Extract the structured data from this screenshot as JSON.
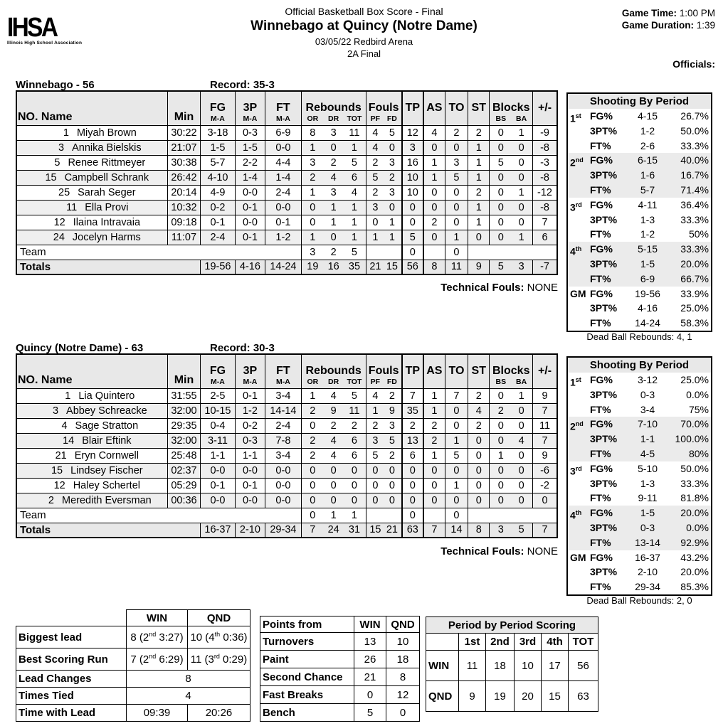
{
  "page": {
    "logo_text": "IHSA",
    "logo_sub": "Illinois High School Association",
    "title1": "Official Basketball Box Score - Final",
    "title2": "Winnebago at Quincy (Notre Dame)",
    "title3": "03/05/22 Redbird Arena",
    "title4": "2A Final",
    "game_time_label": "Game Time:",
    "game_time": "1:00 PM",
    "game_duration_label": "Game Duration:",
    "game_duration": "1:39",
    "officials_label": "Officials:"
  },
  "box_header": {
    "no_name": "NO. Name",
    "min": "Min",
    "fg": "FG",
    "p3": "3P",
    "ft": "FT",
    "ma": "M-A",
    "rebounds": "Rebounds",
    "or": "OR",
    "dr": "DR",
    "tot": "TOT",
    "fouls": "Fouls",
    "pf": "PF",
    "fd": "FD",
    "tp": "TP",
    "as": "AS",
    "to": "TO",
    "st": "ST",
    "blocks": "Blocks",
    "bs": "BS",
    "ba": "BA",
    "pm": "+/-"
  },
  "teams": [
    {
      "name": "Winnebago - 56",
      "record": "Record: 35-3",
      "players": [
        [
          "1",
          "Miyah Brown",
          "30:22",
          "3-18",
          "0-3",
          "6-9",
          "8",
          "3",
          "11",
          "4",
          "5",
          "12",
          "4",
          "2",
          "2",
          "0",
          "1",
          "-9"
        ],
        [
          "3",
          "Annika Bielskis",
          "21:07",
          "1-5",
          "1-5",
          "0-0",
          "1",
          "0",
          "1",
          "4",
          "0",
          "3",
          "0",
          "0",
          "1",
          "0",
          "0",
          "-8"
        ],
        [
          "5",
          "Renee Rittmeyer",
          "30:38",
          "5-7",
          "2-2",
          "4-4",
          "3",
          "2",
          "5",
          "2",
          "3",
          "16",
          "1",
          "3",
          "1",
          "5",
          "0",
          "-3"
        ],
        [
          "15",
          "Campbell Schrank",
          "26:42",
          "4-10",
          "1-4",
          "1-4",
          "2",
          "4",
          "6",
          "5",
          "2",
          "10",
          "1",
          "5",
          "1",
          "0",
          "0",
          "-8"
        ],
        [
          "25",
          "Sarah Seger",
          "20:14",
          "4-9",
          "0-0",
          "2-4",
          "1",
          "3",
          "4",
          "2",
          "3",
          "10",
          "0",
          "0",
          "2",
          "0",
          "1",
          "-12"
        ],
        [
          "11",
          "Ella Provi",
          "10:32",
          "0-2",
          "0-1",
          "0-0",
          "0",
          "1",
          "1",
          "3",
          "0",
          "0",
          "0",
          "0",
          "1",
          "0",
          "0",
          "-8"
        ],
        [
          "12",
          "Ilaina Intravaia",
          "09:18",
          "0-1",
          "0-0",
          "0-1",
          "0",
          "1",
          "1",
          "0",
          "1",
          "0",
          "2",
          "0",
          "1",
          "0",
          "0",
          "7"
        ],
        [
          "24",
          "Jocelyn Harms",
          "11:07",
          "2-4",
          "0-1",
          "1-2",
          "1",
          "0",
          "1",
          "1",
          "1",
          "5",
          "0",
          "1",
          "0",
          "0",
          "1",
          "6"
        ]
      ],
      "team_row": {
        "label": "Team",
        "or": "3",
        "dr": "2",
        "tot": "5",
        "tp": "0",
        "to": "0"
      },
      "totals": [
        "Totals",
        "19-56",
        "4-16",
        "14-24",
        "19",
        "16",
        "35",
        "21",
        "15",
        "56",
        "8",
        "11",
        "9",
        "5",
        "3",
        "-7"
      ],
      "technical_label": "Technical Fouls:",
      "technical_value": "NONE",
      "shooting_title": "Shooting By Period",
      "shooting_rows": [
        [
          "1st",
          "FG%",
          "4-15",
          "26.7%"
        ],
        [
          "",
          "3PT%",
          "1-2",
          "50.0%"
        ],
        [
          "",
          "FT%",
          "2-6",
          "33.3%"
        ],
        [
          "2nd",
          "FG%",
          "6-15",
          "40.0%"
        ],
        [
          "",
          "3PT%",
          "1-6",
          "16.7%"
        ],
        [
          "",
          "FT%",
          "5-7",
          "71.4%"
        ],
        [
          "3rd",
          "FG%",
          "4-11",
          "36.4%"
        ],
        [
          "",
          "3PT%",
          "1-3",
          "33.3%"
        ],
        [
          "",
          "FT%",
          "1-2",
          "50%"
        ],
        [
          "4th",
          "FG%",
          "5-15",
          "33.3%"
        ],
        [
          "",
          "3PT%",
          "1-5",
          "20.0%"
        ],
        [
          "",
          "FT%",
          "6-9",
          "66.7%"
        ],
        [
          "GM",
          "FG%",
          "19-56",
          "33.9%"
        ],
        [
          "",
          "3PT%",
          "4-16",
          "25.0%"
        ],
        [
          "",
          "FT%",
          "14-24",
          "58.3%"
        ]
      ],
      "dead_ball": "Dead Ball Rebounds: 4, 1"
    },
    {
      "name": "Quincy (Notre Dame) - 63",
      "record": "Record: 30-3",
      "players": [
        [
          "1",
          "Lia Quintero",
          "31:55",
          "2-5",
          "0-1",
          "3-4",
          "1",
          "4",
          "5",
          "4",
          "2",
          "7",
          "1",
          "7",
          "2",
          "0",
          "1",
          "9"
        ],
        [
          "3",
          "Abbey Schreacke",
          "32:00",
          "10-15",
          "1-2",
          "14-14",
          "2",
          "9",
          "11",
          "1",
          "9",
          "35",
          "1",
          "0",
          "4",
          "2",
          "0",
          "7"
        ],
        [
          "4",
          "Sage Stratton",
          "29:35",
          "0-4",
          "0-2",
          "2-4",
          "0",
          "2",
          "2",
          "2",
          "3",
          "2",
          "2",
          "0",
          "2",
          "0",
          "0",
          "11"
        ],
        [
          "14",
          "Blair Eftink",
          "32:00",
          "3-11",
          "0-3",
          "7-8",
          "2",
          "4",
          "6",
          "3",
          "5",
          "13",
          "2",
          "1",
          "0",
          "0",
          "4",
          "7"
        ],
        [
          "21",
          "Eryn Cornwell",
          "25:48",
          "1-1",
          "1-1",
          "3-4",
          "2",
          "4",
          "6",
          "5",
          "2",
          "6",
          "1",
          "5",
          "0",
          "1",
          "0",
          "9"
        ],
        [
          "15",
          "Lindsey Fischer",
          "02:37",
          "0-0",
          "0-0",
          "0-0",
          "0",
          "0",
          "0",
          "0",
          "0",
          "0",
          "0",
          "0",
          "0",
          "0",
          "0",
          "-6"
        ],
        [
          "12",
          "Haley Schertel",
          "05:29",
          "0-1",
          "0-1",
          "0-0",
          "0",
          "0",
          "0",
          "0",
          "0",
          "0",
          "0",
          "1",
          "0",
          "0",
          "0",
          "-2"
        ],
        [
          "2",
          "Meredith Eversman",
          "00:36",
          "0-0",
          "0-0",
          "0-0",
          "0",
          "0",
          "0",
          "0",
          "0",
          "0",
          "0",
          "0",
          "0",
          "0",
          "0",
          "0"
        ]
      ],
      "team_row": {
        "label": "Team",
        "or": "0",
        "dr": "1",
        "tot": "1",
        "tp": "0",
        "to": "0"
      },
      "totals": [
        "Totals",
        "16-37",
        "2-10",
        "29-34",
        "7",
        "24",
        "31",
        "15",
        "21",
        "63",
        "7",
        "14",
        "8",
        "3",
        "5",
        "7"
      ],
      "technical_label": "Technical Fouls:",
      "technical_value": "NONE",
      "shooting_title": "Shooting By Period",
      "shooting_rows": [
        [
          "1st",
          "FG%",
          "3-12",
          "25.0%"
        ],
        [
          "",
          "3PT%",
          "0-3",
          "0.0%"
        ],
        [
          "",
          "FT%",
          "3-4",
          "75%"
        ],
        [
          "2nd",
          "FG%",
          "7-10",
          "70.0%"
        ],
        [
          "",
          "3PT%",
          "1-1",
          "100.0%"
        ],
        [
          "",
          "FT%",
          "4-5",
          "80%"
        ],
        [
          "3rd",
          "FG%",
          "5-10",
          "50.0%"
        ],
        [
          "",
          "3PT%",
          "1-3",
          "33.3%"
        ],
        [
          "",
          "FT%",
          "9-11",
          "81.8%"
        ],
        [
          "4th",
          "FG%",
          "1-5",
          "20.0%"
        ],
        [
          "",
          "3PT%",
          "0-3",
          "0.0%"
        ],
        [
          "",
          "FT%",
          "13-14",
          "92.9%"
        ],
        [
          "GM",
          "FG%",
          "16-37",
          "43.2%"
        ],
        [
          "",
          "3PT%",
          "2-10",
          "20.0%"
        ],
        [
          "",
          "FT%",
          "29-34",
          "85.3%"
        ]
      ],
      "dead_ball": "Dead Ball Rebounds: 2, 0"
    }
  ],
  "comparison": {
    "col_headers": [
      "WIN",
      "QND"
    ],
    "rows": [
      {
        "label": "Biggest lead",
        "win": "8 (2nd 3:27)",
        "qnd": "10 (4th 0:36)",
        "span": false,
        "tall": true
      },
      {
        "label": "Best Scoring Run",
        "win": "7 (2nd 6:29)",
        "qnd": "11 (3rd 0:29)",
        "span": false,
        "tall": true
      },
      {
        "label": "Lead Changes",
        "value": "8",
        "span": true,
        "tall": false
      },
      {
        "label": "Times Tied",
        "value": "4",
        "span": true,
        "tall": false
      },
      {
        "label": "Time with Lead",
        "win": "09:39",
        "qnd": "20:26",
        "span": false,
        "tall": false
      }
    ]
  },
  "points_from": {
    "title": "Points from",
    "col_headers": [
      "WIN",
      "QND"
    ],
    "rows": [
      [
        "Turnovers",
        "13",
        "10"
      ],
      [
        "Paint",
        "26",
        "18"
      ],
      [
        "Second Chance",
        "21",
        "8"
      ],
      [
        "Fast Breaks",
        "0",
        "12"
      ],
      [
        "Bench",
        "5",
        "0"
      ]
    ]
  },
  "period_scoring": {
    "title": "Period by Period Scoring",
    "col_headers": [
      "1st",
      "2nd",
      "3rd",
      "4th",
      "TOT"
    ],
    "rows": [
      [
        "WIN",
        "11",
        "18",
        "10",
        "17",
        "56"
      ],
      [
        "QND",
        "9",
        "19",
        "20",
        "15",
        "63"
      ]
    ]
  }
}
